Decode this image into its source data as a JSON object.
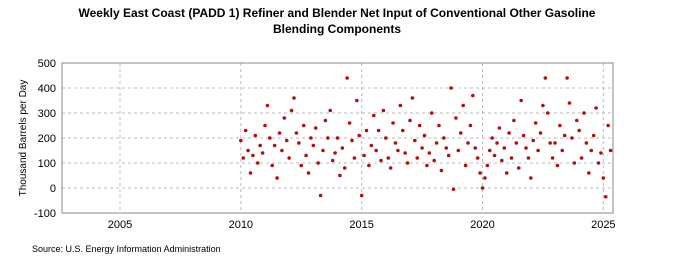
{
  "chart_data": {
    "type": "scatter",
    "title": "Weekly East Coast (PADD 1) Refiner and Blender Net Input of Conventional Other Gasoline",
    "subtitle": "Blending Components",
    "y_label": "Thousand Barrels per Day",
    "source": "Source: U.S. Energy Information Administration",
    "color": "#b01010",
    "grid": true,
    "xlim": [
      2002.6,
      2025.4
    ],
    "xticks": [
      2005,
      2010,
      2015,
      2020,
      2025
    ],
    "ylim": [
      -100,
      500
    ],
    "yticks": [
      -100,
      0,
      100,
      200,
      300,
      400,
      500
    ],
    "x": [
      2010.0,
      2010.1,
      2010.2,
      2010.3,
      2010.4,
      2010.5,
      2010.6,
      2010.7,
      2010.8,
      2010.9,
      2011.0,
      2011.1,
      2011.2,
      2011.3,
      2011.4,
      2011.5,
      2011.6,
      2011.7,
      2011.8,
      2011.9,
      2012.0,
      2012.1,
      2012.2,
      2012.3,
      2012.4,
      2012.5,
      2012.6,
      2012.7,
      2012.8,
      2012.9,
      2013.0,
      2013.1,
      2013.2,
      2013.3,
      2013.4,
      2013.5,
      2013.6,
      2013.7,
      2013.8,
      2013.9,
      2014.0,
      2014.1,
      2014.2,
      2014.3,
      2014.4,
      2014.5,
      2014.6,
      2014.7,
      2014.8,
      2014.9,
      2015.0,
      2015.1,
      2015.2,
      2015.3,
      2015.4,
      2015.5,
      2015.6,
      2015.7,
      2015.8,
      2015.9,
      2016.0,
      2016.1,
      2016.2,
      2016.3,
      2016.4,
      2016.5,
      2016.6,
      2016.7,
      2016.8,
      2016.9,
      2017.0,
      2017.1,
      2017.2,
      2017.3,
      2017.4,
      2017.5,
      2017.6,
      2017.7,
      2017.8,
      2017.9,
      2018.0,
      2018.1,
      2018.2,
      2018.3,
      2018.4,
      2018.5,
      2018.6,
      2018.7,
      2018.8,
      2018.9,
      2019.0,
      2019.1,
      2019.2,
      2019.3,
      2019.4,
      2019.5,
      2019.6,
      2019.7,
      2019.8,
      2019.9,
      2020.0,
      2020.1,
      2020.2,
      2020.3,
      2020.4,
      2020.5,
      2020.6,
      2020.7,
      2020.8,
      2020.9,
      2021.0,
      2021.1,
      2021.2,
      2021.3,
      2021.4,
      2021.5,
      2021.6,
      2021.7,
      2021.8,
      2021.9,
      2022.0,
      2022.1,
      2022.2,
      2022.3,
      2022.4,
      2022.5,
      2022.6,
      2022.7,
      2022.8,
      2022.9,
      2023.0,
      2023.1,
      2023.2,
      2023.3,
      2023.4,
      2023.5,
      2023.6,
      2023.7,
      2023.8,
      2023.9,
      2024.0,
      2024.1,
      2024.2,
      2024.3,
      2024.4,
      2024.5,
      2024.6,
      2024.7,
      2024.8,
      2024.9,
      2025.0,
      2025.1,
      2025.2,
      2025.3
    ],
    "values": [
      190,
      120,
      230,
      150,
      60,
      130,
      210,
      100,
      170,
      140,
      250,
      330,
      200,
      90,
      170,
      40,
      220,
      150,
      280,
      190,
      120,
      310,
      360,
      220,
      180,
      90,
      250,
      130,
      60,
      200,
      170,
      240,
      100,
      -30,
      150,
      270,
      200,
      310,
      110,
      140,
      200,
      50,
      160,
      80,
      440,
      260,
      190,
      120,
      350,
      210,
      -30,
      130,
      230,
      90,
      170,
      290,
      150,
      230,
      110,
      310,
      200,
      120,
      80,
      260,
      180,
      150,
      330,
      230,
      140,
      100,
      270,
      360,
      190,
      120,
      250,
      160,
      210,
      90,
      140,
      300,
      110,
      180,
      250,
      70,
      200,
      160,
      130,
      400,
      -5,
      280,
      150,
      220,
      330,
      90,
      180,
      250,
      370,
      160,
      120,
      60,
      0,
      40,
      90,
      150,
      200,
      130,
      180,
      240,
      110,
      160,
      60,
      220,
      120,
      270,
      180,
      80,
      350,
      210,
      160,
      120,
      40,
      190,
      260,
      150,
      220,
      330,
      440,
      300,
      180,
      120,
      180,
      90,
      250,
      150,
      210,
      440,
      340,
      200,
      100,
      270,
      230,
      120,
      300,
      180,
      60,
      150,
      210,
      320,
      100,
      140,
      40,
      -35,
      250,
      150
    ]
  }
}
